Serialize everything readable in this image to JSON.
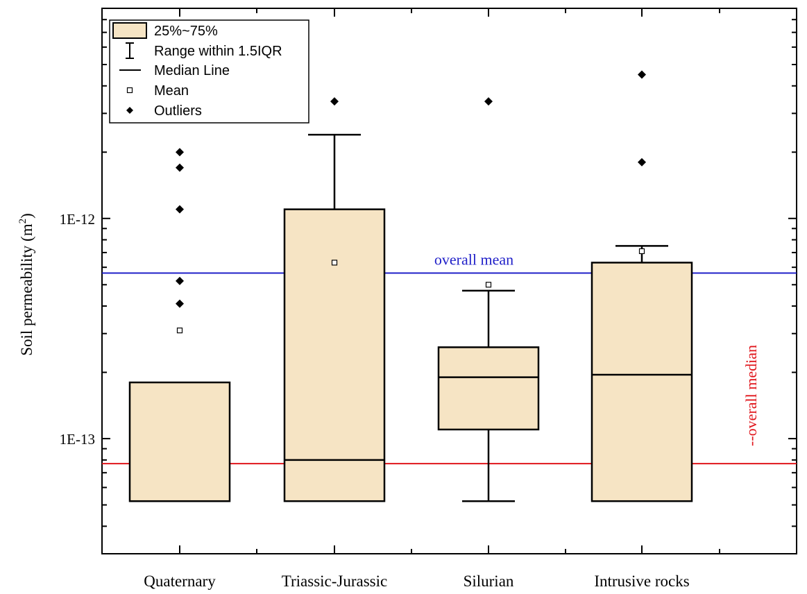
{
  "chart_data": {
    "type": "box",
    "ylabel": "Soil permeability (m",
    "ylabel_sup": "2",
    "ylabel_close": ")",
    "yscale": "log",
    "ylim": [
      3e-14,
      9e-12
    ],
    "yticks": [
      {
        "value": 1e-13,
        "label": "1E-13"
      },
      {
        "value": 1e-12,
        "label": "1E-12"
      }
    ],
    "categories": [
      "Quaternary",
      "Triassic-Jurassic",
      "Silurian",
      "Intrusive rocks"
    ],
    "boxes": [
      {
        "category": "Quaternary",
        "q1": 5.2e-14,
        "median": 5.2e-14,
        "q3": 1.8e-13,
        "whisker_low": null,
        "whisker_high": null,
        "mean": 3.1e-13,
        "outliers": [
          4.1e-13,
          5.2e-13,
          1.1e-12,
          1.7e-12,
          2e-12
        ]
      },
      {
        "category": "Triassic-Jurassic",
        "q1": 5.2e-14,
        "median": 8e-14,
        "q3": 1.1e-12,
        "whisker_low": null,
        "whisker_high": 2.4e-12,
        "mean": 6.3e-13,
        "outliers": [
          3.4e-12
        ]
      },
      {
        "category": "Silurian",
        "q1": 1.1e-13,
        "median": 1.9e-13,
        "q3": 2.6e-13,
        "whisker_low": 5.2e-14,
        "whisker_high": 4.7e-13,
        "mean": 5e-13,
        "outliers": [
          3.4e-12
        ]
      },
      {
        "category": "Intrusive rocks",
        "q1": 5.2e-14,
        "median": 1.95e-13,
        "q3": 6.3e-13,
        "whisker_low": null,
        "whisker_high": 7.5e-13,
        "mean": 7.1e-13,
        "outliers": [
          1.8e-12,
          4.5e-12
        ]
      }
    ],
    "reference_lines": [
      {
        "name": "overall mean",
        "label": "overall mean",
        "value": 5.65e-13,
        "color": "#1f1fc8"
      },
      {
        "name": "overall median",
        "label": "--overall median",
        "value": 7.7e-14,
        "color": "#e0151b"
      }
    ],
    "legend": {
      "position": "top-left",
      "entries": [
        {
          "symbol": "box",
          "label": "25%~75%"
        },
        {
          "symbol": "whisker",
          "label": "Range within 1.5IQR"
        },
        {
          "symbol": "line",
          "label": "Median Line"
        },
        {
          "symbol": "square",
          "label": "Mean"
        },
        {
          "symbol": "diamond",
          "label": "Outliers"
        }
      ]
    },
    "colors": {
      "box_fill": "#f6e4c4",
      "box_stroke": "#000000",
      "axis": "#000000"
    }
  }
}
